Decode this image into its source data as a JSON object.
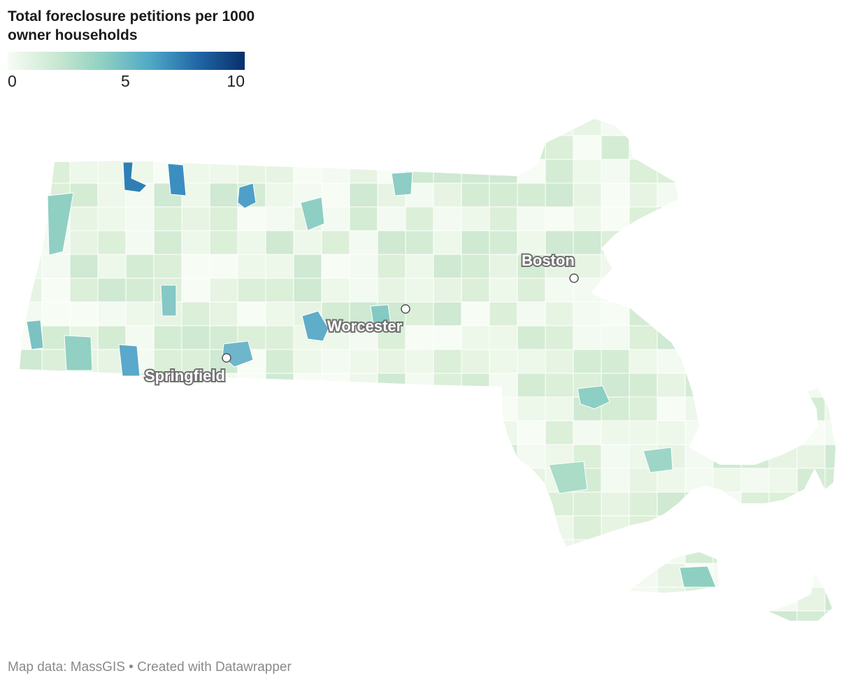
{
  "title": "Total foreclosure petitions per 1000 owner households",
  "legend": {
    "ticks": [
      "0",
      "5",
      "10"
    ],
    "min": 0,
    "max": 10,
    "colors": [
      "#f7fcf5",
      "#cbe9d2",
      "#8fd0c2",
      "#4fa9c7",
      "#2167a8",
      "#08306b"
    ]
  },
  "cities": [
    {
      "name": "Boston"
    },
    {
      "name": "Worcester"
    },
    {
      "name": "Springfield"
    }
  ],
  "footer": "Map data: MassGIS • Created with Datawrapper"
}
